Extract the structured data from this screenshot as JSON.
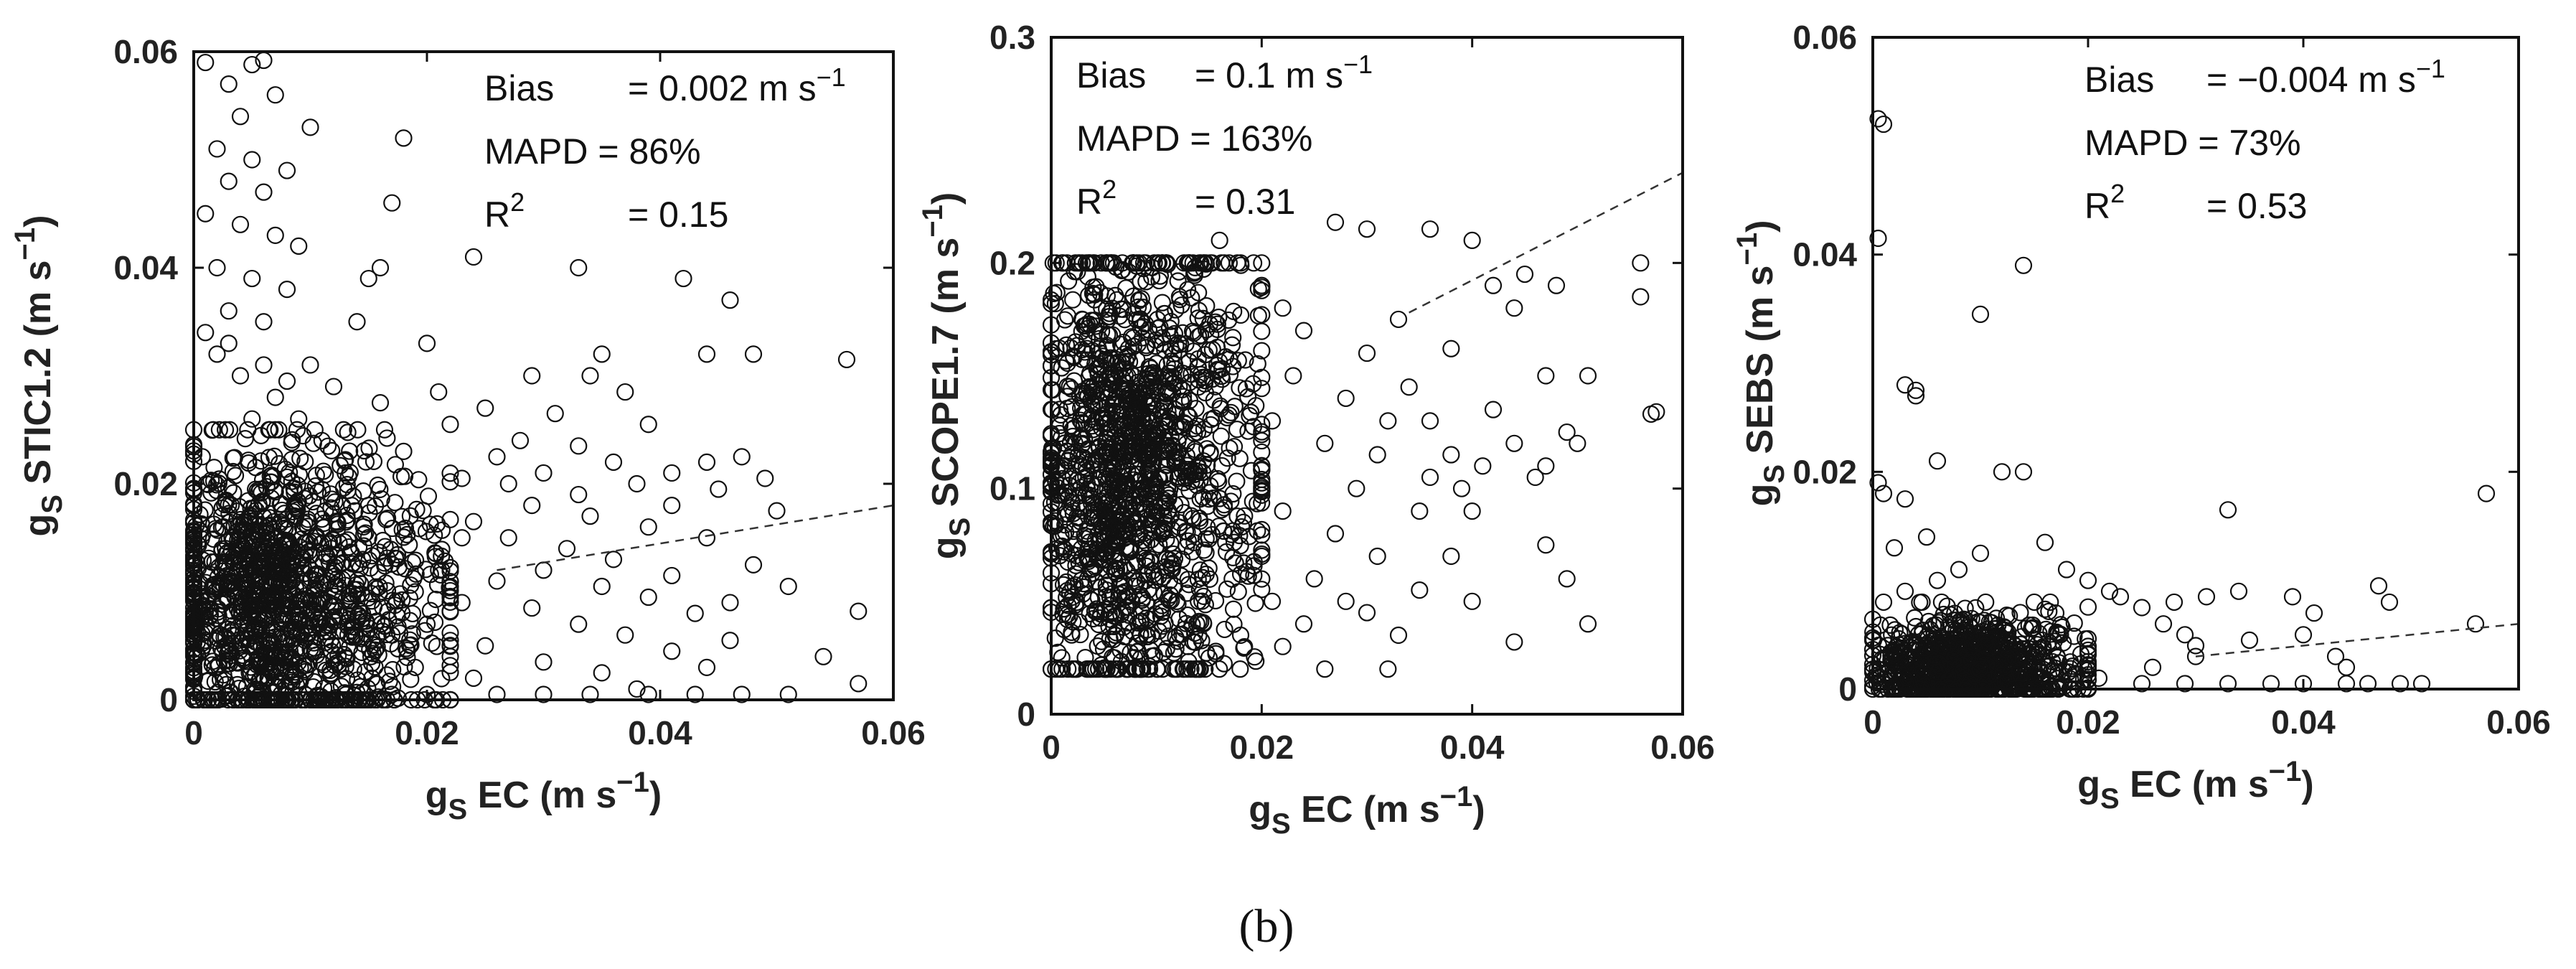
{
  "caption": "(b)",
  "chart_data": [
    {
      "type": "scatter",
      "title": "",
      "xlabel_base": "g",
      "xlabel_sub": "S",
      "xlabel_rest": " EC (m s",
      "xlabel_sup": "−1",
      "xlabel_end": ")",
      "ylabel_base": "g",
      "ylabel_sub": "S",
      "ylabel_rest": " STIC1.2 (m s",
      "ylabel_sup": "−1",
      "ylabel_end": ")",
      "xlim": [
        0,
        0.06
      ],
      "ylim": [
        0,
        0.06
      ],
      "xticks": [
        "0",
        "0.02",
        "0.04",
        "0.06"
      ],
      "yticks": [
        "0",
        "0.02",
        "0.04",
        "0.06"
      ],
      "stats": {
        "bias_label": "Bias",
        "bias_value": "= 0.002 m s",
        "bias_sup": "−1",
        "mapd_label": "MAPD",
        "mapd_value": "= 86%",
        "r2_label": "R",
        "r2_sup": "2",
        "r2_value": "= 0.15"
      },
      "fit_line": {
        "x": [
          0.026,
          0.06
        ],
        "y": [
          0.012,
          0.018
        ]
      },
      "points": [
        [
          0.001,
          0.059
        ],
        [
          0.005,
          0.0588
        ],
        [
          0.006,
          0.0592
        ],
        [
          0.003,
          0.057
        ],
        [
          0.007,
          0.056
        ],
        [
          0.004,
          0.054
        ],
        [
          0.01,
          0.053
        ],
        [
          0.018,
          0.052
        ],
        [
          0.002,
          0.051
        ],
        [
          0.005,
          0.05
        ],
        [
          0.008,
          0.049
        ],
        [
          0.003,
          0.048
        ],
        [
          0.006,
          0.047
        ],
        [
          0.017,
          0.046
        ],
        [
          0.001,
          0.045
        ],
        [
          0.004,
          0.044
        ],
        [
          0.007,
          0.043
        ],
        [
          0.009,
          0.042
        ],
        [
          0.024,
          0.041
        ],
        [
          0.016,
          0.04
        ],
        [
          0.002,
          0.04
        ],
        [
          0.005,
          0.039
        ],
        [
          0.015,
          0.039
        ],
        [
          0.033,
          0.04
        ],
        [
          0.042,
          0.039
        ],
        [
          0.008,
          0.038
        ],
        [
          0.046,
          0.037
        ],
        [
          0.003,
          0.036
        ],
        [
          0.006,
          0.035
        ],
        [
          0.014,
          0.035
        ],
        [
          0.02,
          0.033
        ],
        [
          0.035,
          0.032
        ],
        [
          0.044,
          0.032
        ],
        [
          0.048,
          0.032
        ],
        [
          0.056,
          0.0315
        ],
        [
          0.01,
          0.031
        ],
        [
          0.029,
          0.03
        ],
        [
          0.034,
          0.03
        ],
        [
          0.012,
          0.029
        ],
        [
          0.021,
          0.0285
        ],
        [
          0.037,
          0.0285
        ],
        [
          0.016,
          0.0275
        ],
        [
          0.025,
          0.027
        ],
        [
          0.031,
          0.0265
        ],
        [
          0.005,
          0.026
        ],
        [
          0.022,
          0.0255
        ],
        [
          0.039,
          0.0255
        ],
        [
          0.028,
          0.024
        ],
        [
          0.033,
          0.0235
        ],
        [
          0.018,
          0.023
        ],
        [
          0.026,
          0.0225
        ],
        [
          0.047,
          0.0225
        ],
        [
          0.036,
          0.022
        ],
        [
          0.044,
          0.022
        ],
        [
          0.03,
          0.021
        ],
        [
          0.041,
          0.021
        ],
        [
          0.023,
          0.0205
        ],
        [
          0.049,
          0.0205
        ],
        [
          0.027,
          0.02
        ],
        [
          0.038,
          0.02
        ],
        [
          0.033,
          0.019
        ],
        [
          0.045,
          0.0195
        ],
        [
          0.029,
          0.018
        ],
        [
          0.041,
          0.018
        ],
        [
          0.05,
          0.0175
        ],
        [
          0.034,
          0.017
        ],
        [
          0.024,
          0.0165
        ],
        [
          0.039,
          0.016
        ],
        [
          0.027,
          0.015
        ],
        [
          0.044,
          0.015
        ],
        [
          0.032,
          0.014
        ],
        [
          0.036,
          0.013
        ],
        [
          0.048,
          0.0125
        ],
        [
          0.03,
          0.012
        ],
        [
          0.041,
          0.0115
        ],
        [
          0.026,
          0.011
        ],
        [
          0.035,
          0.0105
        ],
        [
          0.051,
          0.0105
        ],
        [
          0.039,
          0.0095
        ],
        [
          0.046,
          0.009
        ],
        [
          0.029,
          0.0085
        ],
        [
          0.043,
          0.008
        ],
        [
          0.057,
          0.0082
        ],
        [
          0.033,
          0.007
        ],
        [
          0.037,
          0.006
        ],
        [
          0.046,
          0.0055
        ],
        [
          0.025,
          0.005
        ],
        [
          0.041,
          0.0045
        ],
        [
          0.054,
          0.004
        ],
        [
          0.03,
          0.0035
        ],
        [
          0.044,
          0.003
        ],
        [
          0.035,
          0.0025
        ],
        [
          0.057,
          0.0015
        ],
        [
          0.038,
          0.001
        ],
        [
          0.026,
          0.0005
        ],
        [
          0.03,
          0.0005
        ],
        [
          0.034,
          0.0005
        ],
        [
          0.039,
          0.0005
        ],
        [
          0.043,
          0.0005
        ],
        [
          0.047,
          0.0005
        ],
        [
          0.051,
          0.0005
        ],
        [
          0.02,
          0.0005
        ],
        [
          0.017,
          0.0005
        ],
        [
          0.023,
          0.015
        ],
        [
          0.021,
          0.012
        ],
        [
          0.019,
          0.01
        ],
        [
          0.023,
          0.009
        ],
        [
          0.02,
          0.007
        ],
        [
          0.017,
          0.006
        ],
        [
          0.022,
          0.004
        ],
        [
          0.019,
          0.003
        ],
        [
          0.024,
          0.002
        ],
        [
          0.015,
          0.018
        ],
        [
          0.013,
          0.021
        ],
        [
          0.011,
          0.024
        ],
        [
          0.009,
          0.026
        ],
        [
          0.007,
          0.028
        ],
        [
          0.004,
          0.03
        ],
        [
          0.002,
          0.032
        ],
        [
          0.001,
          0.034
        ],
        [
          0.003,
          0.033
        ],
        [
          0.006,
          0.031
        ],
        [
          0.008,
          0.0295
        ]
      ],
      "dense_cloud": {
        "x_range": [
          0.0,
          0.022
        ],
        "y_range": [
          0.0,
          0.025
        ],
        "center": [
          0.004,
          0.009
        ],
        "count": 1400
      }
    },
    {
      "type": "scatter",
      "title": "",
      "xlabel_base": "g",
      "xlabel_sub": "S",
      "xlabel_rest": " EC (m s",
      "xlabel_sup": "−1",
      "xlabel_end": ")",
      "ylabel_base": "g",
      "ylabel_sub": "S",
      "ylabel_rest": " SCOPE1.7 (m s",
      "ylabel_sup": "−1",
      "ylabel_end": ")",
      "xlim": [
        0,
        0.06
      ],
      "ylim": [
        0,
        0.3
      ],
      "xticks": [
        "0",
        "0.02",
        "0.04",
        "0.06"
      ],
      "yticks": [
        "0",
        "0.1",
        "0.2",
        "0.3"
      ],
      "stats": {
        "bias_label": "Bias",
        "bias_value": "= 0.1 m s",
        "bias_sup": "−1",
        "mapd_label": "MAPD",
        "mapd_value": "= 163%",
        "r2_label": "R",
        "r2_sup": "2",
        "r2_value": "= 0.31"
      },
      "fit_line": {
        "x": [
          0.034,
          0.06
        ],
        "y": [
          0.178,
          0.24
        ]
      },
      "points": [
        [
          0.056,
          0.2
        ],
        [
          0.056,
          0.185
        ],
        [
          0.057,
          0.133
        ],
        [
          0.0575,
          0.134
        ],
        [
          0.048,
          0.19
        ],
        [
          0.051,
          0.15
        ],
        [
          0.044,
          0.18
        ],
        [
          0.047,
          0.15
        ],
        [
          0.049,
          0.125
        ],
        [
          0.05,
          0.12
        ],
        [
          0.047,
          0.11
        ],
        [
          0.046,
          0.105
        ],
        [
          0.044,
          0.12
        ],
        [
          0.042,
          0.135
        ],
        [
          0.041,
          0.11
        ],
        [
          0.04,
          0.09
        ],
        [
          0.039,
          0.1
        ],
        [
          0.038,
          0.115
        ],
        [
          0.036,
          0.105
        ],
        [
          0.035,
          0.09
        ],
        [
          0.047,
          0.075
        ],
        [
          0.049,
          0.06
        ],
        [
          0.051,
          0.04
        ],
        [
          0.044,
          0.032
        ],
        [
          0.04,
          0.05
        ],
        [
          0.038,
          0.07
        ],
        [
          0.035,
          0.055
        ],
        [
          0.033,
          0.035
        ],
        [
          0.032,
          0.02
        ],
        [
          0.03,
          0.045
        ],
        [
          0.036,
          0.215
        ],
        [
          0.04,
          0.21
        ],
        [
          0.045,
          0.195
        ],
        [
          0.042,
          0.19
        ],
        [
          0.03,
          0.215
        ],
        [
          0.027,
          0.218
        ],
        [
          0.033,
          0.175
        ],
        [
          0.038,
          0.162
        ],
        [
          0.03,
          0.16
        ],
        [
          0.028,
          0.14
        ],
        [
          0.032,
          0.13
        ],
        [
          0.026,
          0.12
        ],
        [
          0.029,
          0.1
        ],
        [
          0.027,
          0.08
        ],
        [
          0.031,
          0.07
        ],
        [
          0.025,
          0.06
        ],
        [
          0.028,
          0.05
        ],
        [
          0.024,
          0.04
        ],
        [
          0.026,
          0.02
        ],
        [
          0.022,
          0.03
        ],
        [
          0.034,
          0.145
        ],
        [
          0.036,
          0.13
        ],
        [
          0.031,
          0.115
        ],
        [
          0.02,
          0.19
        ],
        [
          0.022,
          0.18
        ],
        [
          0.024,
          0.17
        ],
        [
          0.023,
          0.15
        ],
        [
          0.021,
          0.13
        ],
        [
          0.02,
          0.11
        ],
        [
          0.022,
          0.09
        ],
        [
          0.02,
          0.07
        ],
        [
          0.021,
          0.05
        ],
        [
          0.018,
          0.035
        ],
        [
          0.016,
          0.21
        ],
        [
          0.018,
          0.2
        ],
        [
          0.015,
          0.025
        ],
        [
          0.013,
          0.03
        ],
        [
          0.002,
          0.02
        ],
        [
          0.004,
          0.02
        ],
        [
          0.006,
          0.025
        ],
        [
          0.001,
          0.025
        ]
      ],
      "dense_cloud": {
        "x_range": [
          0.0,
          0.02
        ],
        "y_range": [
          0.02,
          0.2
        ],
        "center": [
          0.005,
          0.11
        ],
        "count": 1500
      }
    },
    {
      "type": "scatter",
      "title": "",
      "xlabel_base": "g",
      "xlabel_sub": "S",
      "xlabel_rest": " EC (m s",
      "xlabel_sup": "−1",
      "xlabel_end": ")",
      "ylabel_base": "g",
      "ylabel_sub": "S",
      "ylabel_rest": " SEBS (m s",
      "ylabel_sup": "−1",
      "ylabel_end": ")",
      "xlim": [
        0,
        0.06
      ],
      "ylim": [
        0,
        0.06
      ],
      "xticks": [
        "0",
        "0.02",
        "0.04",
        "0.06"
      ],
      "yticks": [
        "0",
        "0.02",
        "0.04",
        "0.06"
      ],
      "stats": {
        "bias_label": "Bias",
        "bias_value": "= −0.004 m s",
        "bias_sup": "−1",
        "mapd_label": "MAPD",
        "mapd_value": "= 73%",
        "r2_label": "R",
        "r2_sup": "2",
        "r2_value": "= 0.53"
      },
      "fit_line": {
        "x": [
          0.03,
          0.06
        ],
        "y": [
          0.003,
          0.006
        ]
      },
      "points": [
        [
          0.0005,
          0.0525
        ],
        [
          0.001,
          0.052
        ],
        [
          0.0005,
          0.0415
        ],
        [
          0.014,
          0.039
        ],
        [
          0.01,
          0.0345
        ],
        [
          0.003,
          0.028
        ],
        [
          0.004,
          0.0275
        ],
        [
          0.004,
          0.027
        ],
        [
          0.006,
          0.021
        ],
        [
          0.0005,
          0.019
        ],
        [
          0.001,
          0.018
        ],
        [
          0.003,
          0.0175
        ],
        [
          0.012,
          0.02
        ],
        [
          0.014,
          0.02
        ],
        [
          0.057,
          0.018
        ],
        [
          0.033,
          0.0165
        ],
        [
          0.005,
          0.014
        ],
        [
          0.002,
          0.013
        ],
        [
          0.01,
          0.0125
        ],
        [
          0.016,
          0.0135
        ],
        [
          0.018,
          0.011
        ],
        [
          0.02,
          0.01
        ],
        [
          0.022,
          0.009
        ],
        [
          0.023,
          0.0085
        ],
        [
          0.025,
          0.0075
        ],
        [
          0.028,
          0.008
        ],
        [
          0.031,
          0.0085
        ],
        [
          0.034,
          0.009
        ],
        [
          0.039,
          0.0085
        ],
        [
          0.041,
          0.007
        ],
        [
          0.047,
          0.0095
        ],
        [
          0.048,
          0.008
        ],
        [
          0.056,
          0.006
        ],
        [
          0.027,
          0.006
        ],
        [
          0.029,
          0.005
        ],
        [
          0.03,
          0.004
        ],
        [
          0.035,
          0.0045
        ],
        [
          0.04,
          0.005
        ],
        [
          0.043,
          0.003
        ],
        [
          0.044,
          0.002
        ],
        [
          0.03,
          0.003
        ],
        [
          0.026,
          0.002
        ],
        [
          0.021,
          0.001
        ],
        [
          0.025,
          0.0005
        ],
        [
          0.029,
          0.0005
        ],
        [
          0.033,
          0.0005
        ],
        [
          0.037,
          0.0005
        ],
        [
          0.04,
          0.0005
        ],
        [
          0.044,
          0.0005
        ],
        [
          0.046,
          0.0005
        ],
        [
          0.049,
          0.0005
        ],
        [
          0.051,
          0.0005
        ],
        [
          0.006,
          0.01
        ],
        [
          0.008,
          0.011
        ],
        [
          0.003,
          0.009
        ],
        [
          0.001,
          0.008
        ],
        [
          0.015,
          0.008
        ],
        [
          0.017,
          0.007
        ]
      ],
      "dense_cloud": {
        "x_range": [
          0.0,
          0.02
        ],
        "y_range": [
          0.0,
          0.008
        ],
        "center": [
          0.006,
          0.002
        ],
        "count": 900
      }
    }
  ]
}
